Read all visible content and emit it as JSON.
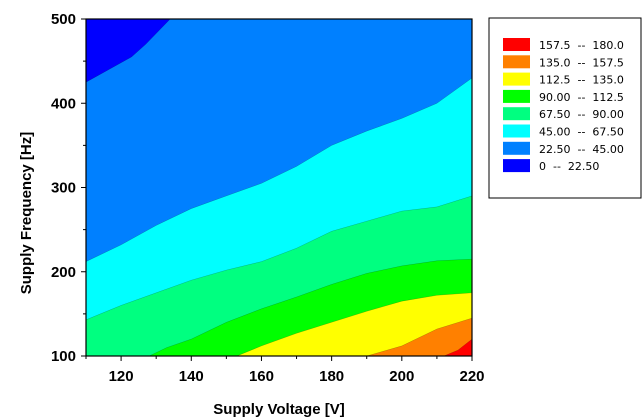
{
  "chart_data": {
    "type": "contour",
    "xlabel": "Supply Voltage [V]",
    "ylabel": "Supply Frequency [Hz]",
    "xlim": [
      110,
      220
    ],
    "ylim": [
      100,
      500
    ],
    "xticks": [
      120,
      140,
      160,
      180,
      200,
      220
    ],
    "yticks": [
      100,
      200,
      300,
      400,
      500
    ],
    "legend_position": "right",
    "levels": [
      {
        "range": "157.5  --  180.0",
        "color": "#ff0000"
      },
      {
        "range": "135.0  --  157.5",
        "color": "#ff8000"
      },
      {
        "range": "112.5  --  135.0",
        "color": "#ffff00"
      },
      {
        "range": "90.00  --  112.5",
        "color": "#00ff00"
      },
      {
        "range": "67.50  --  90.00",
        "color": "#00ff80"
      },
      {
        "range": "45.00  --  67.50",
        "color": "#00ffff"
      },
      {
        "range": "22.50  --  45.00",
        "color": "#0080ff"
      },
      {
        "range": "0  --  22.50",
        "color": "#0000ff"
      }
    ],
    "boundaries": [
      {
        "name": "22.50",
        "points": [
          [
            110,
            425
          ],
          [
            123,
            455
          ],
          [
            127,
            470
          ],
          [
            134,
            500
          ]
        ]
      },
      {
        "name": "45.00",
        "points": [
          [
            110,
            212
          ],
          [
            120,
            232
          ],
          [
            130,
            255
          ],
          [
            140,
            275
          ],
          [
            150,
            290
          ],
          [
            160,
            305
          ],
          [
            170,
            325
          ],
          [
            180,
            350
          ],
          [
            190,
            367
          ],
          [
            200,
            382
          ],
          [
            210,
            400
          ],
          [
            220,
            430
          ]
        ]
      },
      {
        "name": "67.50",
        "points": [
          [
            110,
            143
          ],
          [
            120,
            160
          ],
          [
            130,
            175
          ],
          [
            140,
            190
          ],
          [
            150,
            202
          ],
          [
            160,
            212
          ],
          [
            170,
            228
          ],
          [
            180,
            248
          ],
          [
            190,
            260
          ],
          [
            200,
            272
          ],
          [
            210,
            277
          ],
          [
            220,
            290
          ]
        ]
      },
      {
        "name": "90.00",
        "points": [
          [
            128,
            100
          ],
          [
            133,
            110
          ],
          [
            140,
            120
          ],
          [
            150,
            140
          ],
          [
            160,
            156
          ],
          [
            170,
            170
          ],
          [
            180,
            185
          ],
          [
            190,
            198
          ],
          [
            200,
            207
          ],
          [
            210,
            213
          ],
          [
            220,
            215
          ]
        ]
      },
      {
        "name": "112.5",
        "points": [
          [
            153,
            100
          ],
          [
            160,
            112
          ],
          [
            170,
            127
          ],
          [
            180,
            140
          ],
          [
            190,
            153
          ],
          [
            200,
            165
          ],
          [
            210,
            172
          ],
          [
            220,
            175
          ]
        ]
      },
      {
        "name": "135.0",
        "points": [
          [
            190,
            100
          ],
          [
            200,
            112
          ],
          [
            210,
            132
          ],
          [
            220,
            145
          ]
        ]
      },
      {
        "name": "157.5",
        "points": [
          [
            212,
            100
          ],
          [
            216,
            107
          ],
          [
            220,
            120
          ]
        ]
      }
    ]
  }
}
